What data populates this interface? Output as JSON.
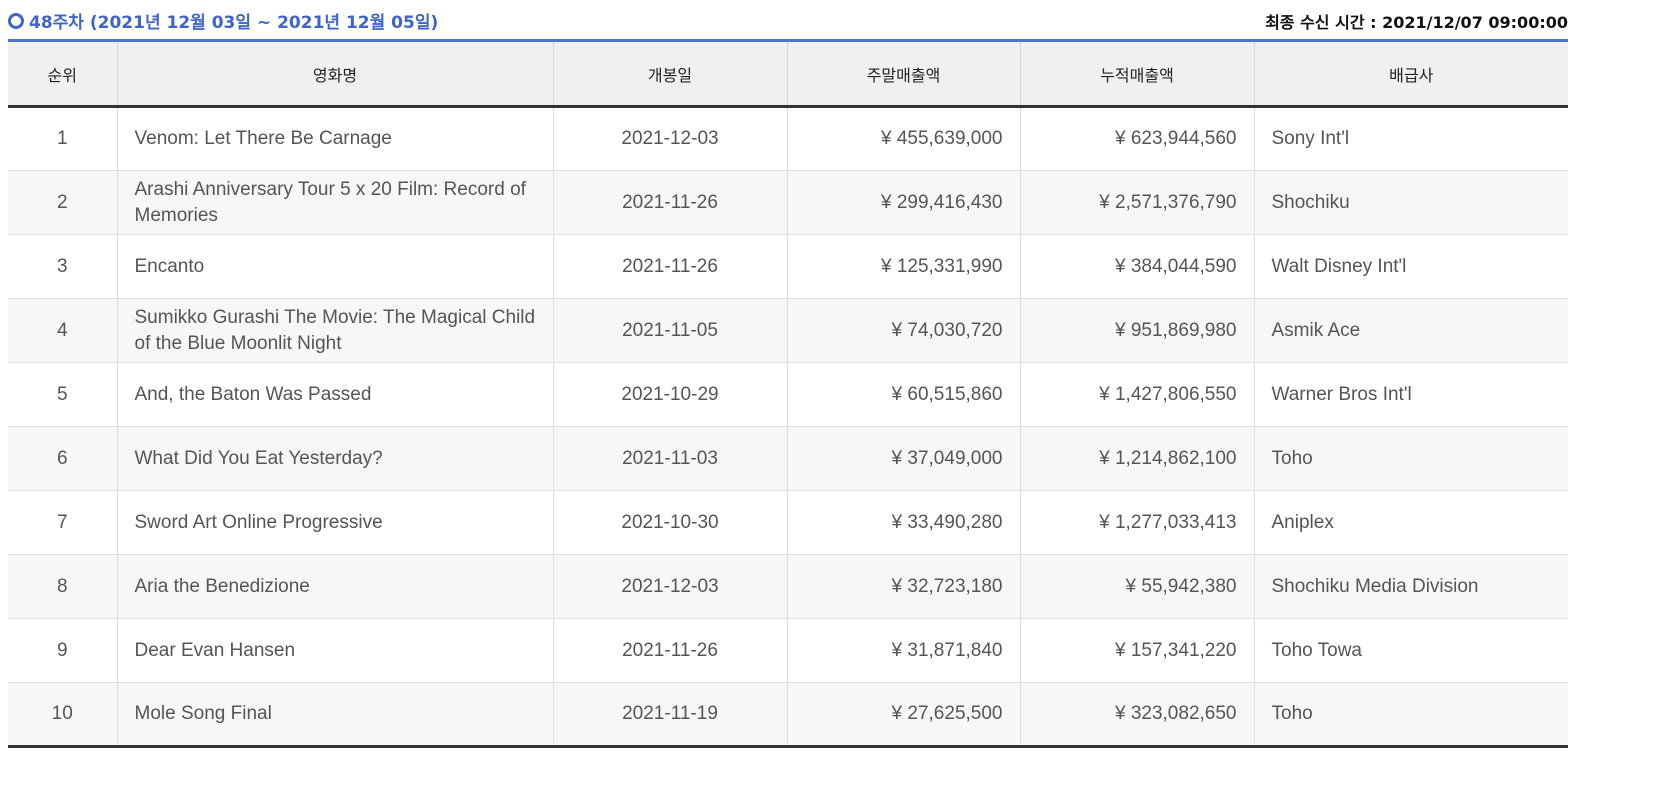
{
  "header": {
    "week_label": "48주차 (2021년 12월 03일 ~ 2021년 12월 05일)",
    "last_update": "최종 수신 시간 : 2021/12/07 09:00:00"
  },
  "table": {
    "columns": {
      "rank": "순위",
      "title": "영화명",
      "release": "개봉일",
      "weekend": "주말매출액",
      "cumulative": "누적매출액",
      "distributor": "배급사"
    },
    "rows": [
      {
        "rank": "1",
        "title": "Venom: Let There Be Carnage",
        "release": "2021-12-03",
        "weekend": "¥ 455,639,000",
        "cumulative": "¥ 623,944,560",
        "distributor": "Sony Int'l"
      },
      {
        "rank": "2",
        "title": "Arashi Anniversary Tour 5 x 20 Film: Record of Memories",
        "release": "2021-11-26",
        "weekend": "¥ 299,416,430",
        "cumulative": "¥ 2,571,376,790",
        "distributor": "Shochiku"
      },
      {
        "rank": "3",
        "title": "Encanto",
        "release": "2021-11-26",
        "weekend": "¥ 125,331,990",
        "cumulative": "¥ 384,044,590",
        "distributor": "Walt Disney Int'l"
      },
      {
        "rank": "4",
        "title": "Sumikko Gurashi The Movie: The Magical Child of the Blue Moonlit Night",
        "release": "2021-11-05",
        "weekend": "¥ 74,030,720",
        "cumulative": "¥ 951,869,980",
        "distributor": "Asmik Ace"
      },
      {
        "rank": "5",
        "title": "And, the Baton Was Passed",
        "release": "2021-10-29",
        "weekend": "¥ 60,515,860",
        "cumulative": "¥ 1,427,806,550",
        "distributor": "Warner Bros Int'l"
      },
      {
        "rank": "6",
        "title": "What Did You Eat Yesterday?",
        "release": "2021-11-03",
        "weekend": "¥ 37,049,000",
        "cumulative": "¥ 1,214,862,100",
        "distributor": "Toho"
      },
      {
        "rank": "7",
        "title": "Sword Art Online Progressive",
        "release": "2021-10-30",
        "weekend": "¥ 33,490,280",
        "cumulative": "¥ 1,277,033,413",
        "distributor": "Aniplex"
      },
      {
        "rank": "8",
        "title": "Aria the Benedizione",
        "release": "2021-12-03",
        "weekend": "¥ 32,723,180",
        "cumulative": "¥ 55,942,380",
        "distributor": "Shochiku Media Division"
      },
      {
        "rank": "9",
        "title": "Dear Evan Hansen",
        "release": "2021-11-26",
        "weekend": "¥ 31,871,840",
        "cumulative": "¥ 157,341,220",
        "distributor": "Toho Towa"
      },
      {
        "rank": "10",
        "title": "Mole Song Final",
        "release": "2021-11-19",
        "weekend": "¥ 27,625,500",
        "cumulative": "¥ 323,082,650",
        "distributor": "Toho"
      }
    ]
  }
}
